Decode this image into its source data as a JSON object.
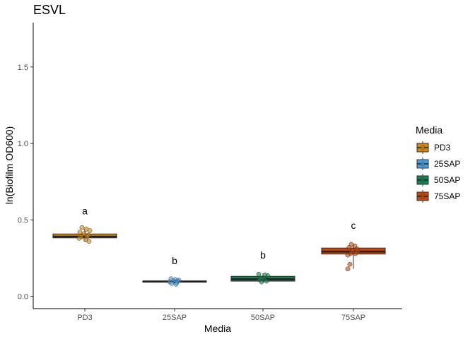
{
  "chart_data": {
    "type": "boxplot",
    "title": "ESVL",
    "xlabel": "Media",
    "ylabel": "ln(Biofilm OD600)",
    "ylim": [
      -0.08,
      1.79
    ],
    "yticks": [
      "0.0",
      "0.5",
      "1.0",
      "1.5"
    ],
    "ytick_values": [
      0.0,
      0.5,
      1.0,
      1.5
    ],
    "categories": [
      "PD3",
      "25SAP",
      "50SAP",
      "75SAP"
    ],
    "legend": {
      "title": "Media",
      "position": "right"
    },
    "colors": [
      "#D4880F",
      "#4B9FDB",
      "#158050",
      "#C2480D"
    ],
    "boxes": [
      {
        "q1": 0.383,
        "median": 0.391,
        "q3": 0.408,
        "min": 0.36,
        "max": 0.44
      },
      {
        "q1": 0.093,
        "median": 0.097,
        "q3": 0.101,
        "min": 0.085,
        "max": 0.11
      },
      {
        "q1": 0.1,
        "median": 0.112,
        "q3": 0.131,
        "min": 0.09,
        "max": 0.15
      },
      {
        "q1": 0.277,
        "median": 0.293,
        "q3": 0.316,
        "min": 0.18,
        "max": 0.34
      }
    ],
    "points": [
      [
        0.45,
        0.44,
        0.43,
        0.42,
        0.41,
        0.4,
        0.39,
        0.39,
        0.38,
        0.37,
        0.36
      ],
      [
        0.115,
        0.11,
        0.105,
        0.1,
        0.1,
        0.095,
        0.09,
        0.085,
        0.08
      ],
      [
        0.145,
        0.14,
        0.135,
        0.12,
        0.115,
        0.11,
        0.1,
        0.095
      ],
      [
        0.34,
        0.33,
        0.32,
        0.31,
        0.3,
        0.29,
        0.28,
        0.28,
        0.27,
        0.21,
        0.18
      ]
    ],
    "jitter": [
      [
        -4,
        2,
        7,
        -7,
        -1,
        5,
        -5,
        3,
        -8,
        1,
        6
      ],
      [
        -5,
        1,
        6,
        -2,
        4,
        -7,
        3,
        -4,
        2
      ],
      [
        -6,
        3,
        7,
        -3,
        1,
        -5,
        5,
        -2
      ],
      [
        -3,
        2,
        -6,
        5,
        -1,
        6,
        -4,
        3,
        -8,
        -5,
        -8
      ]
    ],
    "significance_labels": [
      {
        "category": "PD3",
        "label": "a",
        "y": 0.56
      },
      {
        "category": "25SAP",
        "label": "b",
        "y": 0.235
      },
      {
        "category": "50SAP",
        "label": "b",
        "y": 0.27
      },
      {
        "category": "75SAP",
        "label": "c",
        "y": 0.465
      }
    ]
  }
}
